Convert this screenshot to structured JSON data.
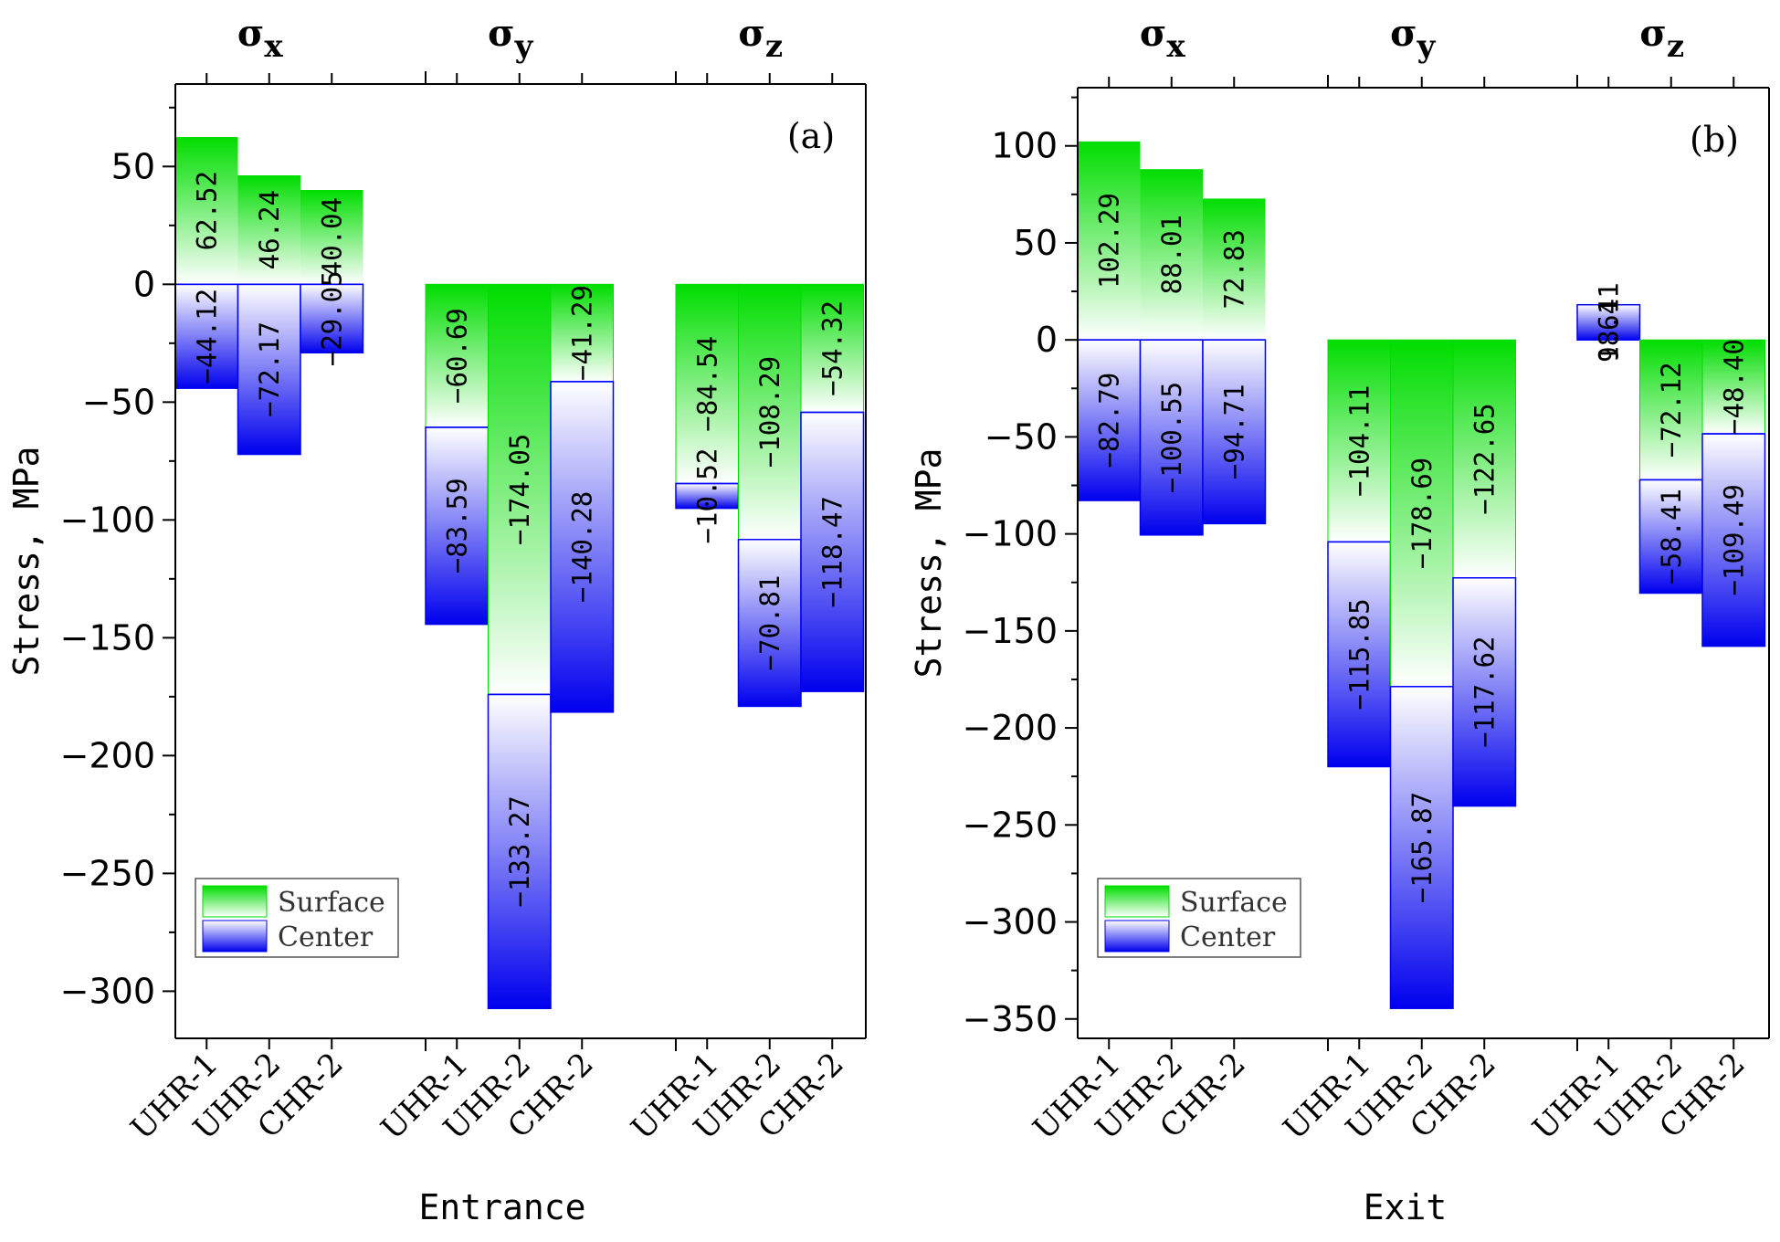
{
  "colors": {
    "surface": "#00dd00",
    "center": "#0000ee",
    "axis": "#000000",
    "divider": "#0000ff"
  },
  "legend": {
    "surface_label": "Surface",
    "center_label": "Center",
    "placement": "bottom-left"
  },
  "chart_data": [
    {
      "type": "bar",
      "panel_tag": "(a)",
      "xlabel": "Entrance",
      "ylabel": "Stress, MPa",
      "ylim": [
        -320,
        85
      ],
      "yticks": [
        50,
        0,
        -50,
        -100,
        -150,
        -200,
        -250,
        -300
      ],
      "groups": [
        {
          "symbol": "σ",
          "subscript": "x",
          "categories": [
            "UHR-1",
            "UHR-2",
            "CHR-2"
          ],
          "surface": [
            62.52,
            46.24,
            40.04
          ],
          "center": [
            -44.12,
            -72.17,
            -29.05
          ],
          "surface_labels": [
            "62.52",
            "46.24",
            "40.04"
          ],
          "center_labels": [
            "−44.12",
            "−72.17",
            "−29.05"
          ]
        },
        {
          "symbol": "σ",
          "subscript": "y",
          "categories": [
            "UHR-1",
            "UHR-2",
            "CHR-2"
          ],
          "surface": [
            -60.69,
            -174.05,
            -41.29
          ],
          "center": [
            -83.59,
            -133.27,
            -140.28
          ],
          "surface_labels": [
            "−60.69",
            "−174.05",
            "−41.29"
          ],
          "center_labels": [
            "−83.59",
            "−133.27",
            "−140.28"
          ]
        },
        {
          "symbol": "σ",
          "subscript": "z",
          "categories": [
            "UHR-1",
            "UHR-2",
            "CHR-2"
          ],
          "surface": [
            -84.54,
            -108.29,
            -54.32
          ],
          "center": [
            -10.52,
            -70.81,
            -118.47
          ],
          "surface_labels": [
            "−84.54",
            "−108.29",
            "−54.32"
          ],
          "center_labels": [
            "−10.52",
            "−70.81",
            "−118.47"
          ]
        }
      ]
    },
    {
      "type": "bar",
      "panel_tag": "(b)",
      "xlabel": "Exit",
      "ylabel": "Stress, MPa",
      "ylim": [
        -360,
        130
      ],
      "yticks": [
        100,
        50,
        0,
        -50,
        -100,
        -150,
        -200,
        -250,
        -300,
        -350
      ],
      "groups": [
        {
          "symbol": "σ",
          "subscript": "x",
          "categories": [
            "UHR-1",
            "UHR-2",
            "CHR-2"
          ],
          "surface": [
            102.29,
            88.01,
            72.83
          ],
          "center": [
            -82.79,
            -100.55,
            -94.71
          ],
          "surface_labels": [
            "102.29",
            "88.01",
            "72.83"
          ],
          "center_labels": [
            "−82.79",
            "−100.55",
            "−94.71"
          ]
        },
        {
          "symbol": "σ",
          "subscript": "y",
          "categories": [
            "UHR-1",
            "UHR-2",
            "CHR-2"
          ],
          "surface": [
            -104.11,
            -178.69,
            -122.65
          ],
          "center": [
            -115.85,
            -165.87,
            -117.62
          ],
          "surface_labels": [
            "−104.11",
            "−178.69",
            "−122.65"
          ],
          "center_labels": [
            "−115.85",
            "−165.87",
            "−117.62"
          ]
        },
        {
          "symbol": "σ",
          "subscript": "z",
          "categories": [
            "UHR-1",
            "UHR-2",
            "CHR-2"
          ],
          "surface": [
            9.64,
            -72.12,
            -48.4
          ],
          "center": [
            18.11,
            -58.41,
            -109.49
          ],
          "surface_labels": [
            "9.64",
            "−72.12",
            "−48.40"
          ],
          "center_labels": [
            "18.11",
            "−58.41",
            "−109.49"
          ]
        }
      ]
    }
  ]
}
